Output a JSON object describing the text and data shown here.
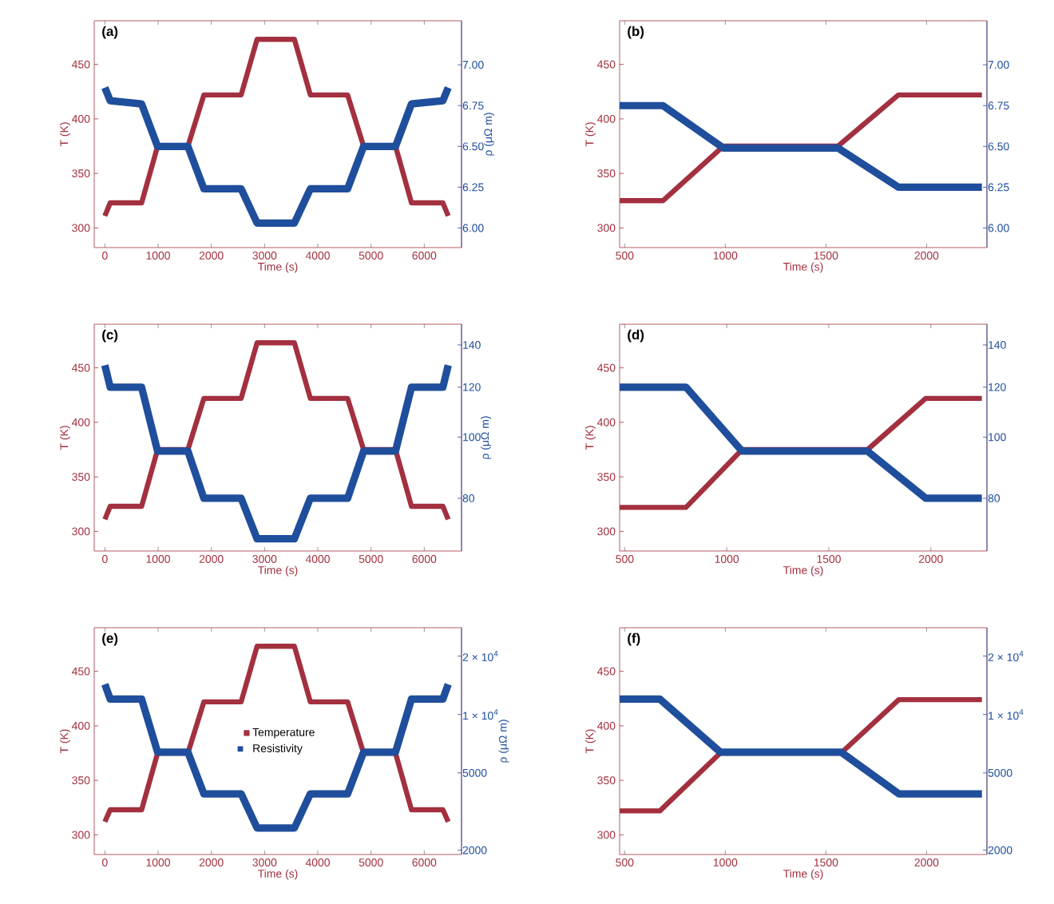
{
  "chart_data": [
    {
      "type": "line",
      "xlabel": "Time (s)",
      "ylabel": "T (K)",
      "y2label": "ρ (μΩ m)",
      "annotations": [
        "(a)"
      ],
      "legend": false,
      "xlim": [
        -200,
        6700
      ],
      "xticks": [
        0,
        1000,
        2000,
        3000,
        4000,
        5000,
        6000
      ],
      "ylim": [
        282,
        490
      ],
      "yticks": [
        300,
        350,
        400,
        450
      ],
      "y2lim": [
        5.88,
        7.27
      ],
      "y2ticks": [
        {
          "value": 6,
          "label": "6.00"
        },
        {
          "value": 6.25,
          "label": "6.25"
        },
        {
          "value": 6.5,
          "label": "6.50"
        },
        {
          "value": 6.75,
          "label": "6.75"
        },
        {
          "value": 7,
          "label": "7.00"
        }
      ],
      "series": [
        {
          "color": "#a3303f",
          "x": [
            0,
            100,
            690,
            990,
            1560,
            1860,
            2560,
            2860,
            3560,
            3860,
            4560,
            4860,
            5460,
            5760,
            6350,
            6450
          ],
          "values": [
            311,
            323,
            323,
            375,
            375,
            422,
            422,
            473,
            473,
            422,
            422,
            375,
            375,
            323,
            323,
            311
          ]
        },
        {
          "color": "#1f4e9c",
          "axis": "y2",
          "x": [
            0,
            100,
            690,
            990,
            1560,
            1860,
            2560,
            2860,
            3560,
            3860,
            4560,
            4860,
            5460,
            5760,
            6350,
            6450
          ],
          "values": [
            6.86,
            6.78,
            6.76,
            6.5,
            6.5,
            6.24,
            6.24,
            6.03,
            6.03,
            6.24,
            6.24,
            6.5,
            6.5,
            6.76,
            6.78,
            6.86
          ]
        }
      ]
    },
    {
      "type": "line",
      "xlabel": "Time (s)",
      "ylabel": "T (K)",
      "annotations": [
        "(b)"
      ],
      "legend": false,
      "xlim": [
        475,
        2300
      ],
      "xticks": [
        500,
        1000,
        1500,
        2000
      ],
      "ylim": [
        282,
        490
      ],
      "yticks": [
        300,
        350,
        400,
        450
      ],
      "y2lim": [
        5.88,
        7.27
      ],
      "y2ticks": [
        {
          "value": 6,
          "label": "6.00"
        },
        {
          "value": 6.25,
          "label": "6.25"
        },
        {
          "value": 6.5,
          "label": "6.50"
        },
        {
          "value": 6.75,
          "label": "6.75"
        },
        {
          "value": 7,
          "label": "7.00"
        }
      ],
      "series": [
        {
          "color": "#a3303f",
          "x": [
            475,
            690,
            990,
            1560,
            1860,
            2275
          ],
          "values": [
            325,
            325,
            375,
            375,
            422,
            422
          ]
        },
        {
          "color": "#1f4e9c",
          "axis": "y2",
          "x": [
            475,
            690,
            990,
            1560,
            1860,
            2275
          ],
          "values": [
            6.75,
            6.75,
            6.49,
            6.49,
            6.25,
            6.25
          ]
        }
      ]
    },
    {
      "type": "line",
      "xlabel": "Time (s)",
      "ylabel": "T (K)",
      "y2label": "ρ (μΩ m)",
      "annotations": [
        "(c)"
      ],
      "legend": false,
      "log": "y2",
      "xlim": [
        -200,
        6700
      ],
      "xticks": [
        0,
        1000,
        2000,
        3000,
        4000,
        5000,
        6000
      ],
      "ylim": [
        282,
        490
      ],
      "yticks": [
        300,
        350,
        400,
        450
      ],
      "y2lim": [
        66,
        151
      ],
      "y2ticks": [
        80,
        100,
        120,
        140
      ],
      "series": [
        {
          "color": "#a3303f",
          "x": [
            0,
            100,
            690,
            990,
            1560,
            1860,
            2560,
            2860,
            3560,
            3860,
            4560,
            4860,
            5460,
            5760,
            6350,
            6450
          ],
          "values": [
            311,
            323,
            323,
            375,
            375,
            422,
            422,
            473,
            473,
            422,
            422,
            375,
            375,
            323,
            323,
            311
          ]
        },
        {
          "color": "#1f4e9c",
          "axis": "y2",
          "x": [
            0,
            100,
            690,
            990,
            1560,
            1860,
            2560,
            2860,
            3560,
            3860,
            4560,
            4860,
            5460,
            5760,
            6350,
            6450
          ],
          "values": [
            130,
            120,
            120,
            95,
            95,
            80,
            80,
            69,
            69,
            80,
            80,
            95,
            95,
            120,
            120,
            130
          ]
        }
      ]
    },
    {
      "type": "line",
      "xlabel": "Time (s)",
      "ylabel": "T (K)",
      "annotations": [
        "(d)"
      ],
      "legend": false,
      "log": "y2",
      "xlim": [
        475,
        2275
      ],
      "xticks": [
        500,
        1000,
        1500,
        2000
      ],
      "ylim": [
        282,
        490
      ],
      "yticks": [
        300,
        350,
        400,
        450
      ],
      "y2lim": [
        66,
        151
      ],
      "y2ticks": [
        80,
        100,
        120,
        140
      ],
      "series": [
        {
          "color": "#a3303f",
          "x": [
            475,
            800,
            1075,
            1690,
            1975,
            2250
          ],
          "values": [
            322,
            322,
            375,
            375,
            422,
            422
          ]
        },
        {
          "color": "#1f4e9c",
          "axis": "y2",
          "x": [
            475,
            800,
            1075,
            1690,
            1975,
            2250
          ],
          "values": [
            120,
            120,
            95,
            95,
            80,
            80
          ]
        }
      ]
    },
    {
      "type": "line",
      "xlabel": "Time (s)",
      "ylabel": "T (K)",
      "y2label": "ρ (μΩ m)",
      "annotations": [
        "(e)"
      ],
      "legend": "center",
      "log": "y2",
      "xlim": [
        -200,
        6700
      ],
      "xticks": [
        0,
        1000,
        2000,
        3000,
        4000,
        5000,
        6000
      ],
      "ylim": [
        282,
        490
      ],
      "yticks": [
        300,
        350,
        400,
        450
      ],
      "y2lim": [
        1900,
        28000
      ],
      "y2ticks": [
        2000,
        5000,
        {
          "value": 10000,
          "label": "1 × 10$^{4}$"
        },
        {
          "value": 20000,
          "label": "2 × 10$^{4}$"
        }
      ],
      "series": [
        {
          "name": "Temperature",
          "color": "#a3303f",
          "x": [
            0,
            100,
            690,
            990,
            1560,
            1860,
            2560,
            2860,
            3560,
            3860,
            4560,
            4860,
            5460,
            5760,
            6350,
            6450
          ],
          "values": [
            312,
            323,
            323,
            375,
            375,
            422,
            422,
            473,
            473,
            422,
            422,
            375,
            375,
            323,
            323,
            312
          ]
        },
        {
          "name": "Resistivity",
          "color": "#1f4e9c",
          "axis": "y2",
          "x": [
            0,
            100,
            690,
            990,
            1560,
            1860,
            2560,
            2860,
            3560,
            3860,
            4560,
            4860,
            5460,
            5760,
            6350,
            6450
          ],
          "values": [
            14300,
            12000,
            12000,
            6400,
            6400,
            3900,
            3900,
            2600,
            2600,
            3900,
            3900,
            6400,
            6400,
            12000,
            12000,
            14300
          ]
        }
      ]
    },
    {
      "type": "line",
      "xlabel": "Time (s)",
      "ylabel": "T (K)",
      "annotations": [
        "(f)"
      ],
      "legend": false,
      "log": "y2",
      "xlim": [
        475,
        2300
      ],
      "xticks": [
        500,
        1000,
        1500,
        2000
      ],
      "ylim": [
        282,
        490
      ],
      "yticks": [
        300,
        350,
        400,
        450
      ],
      "y2lim": [
        1900,
        28000
      ],
      "y2ticks": [
        2000,
        5000,
        {
          "value": 10000,
          "label": "1 × 10$^{4}$"
        },
        {
          "value": 20000,
          "label": "2 × 10$^{4}$"
        }
      ],
      "series": [
        {
          "color": "#a3303f",
          "x": [
            475,
            675,
            975,
            1575,
            1862,
            2275
          ],
          "values": [
            322,
            322,
            375,
            375,
            424,
            424
          ]
        },
        {
          "color": "#1f4e9c",
          "axis": "y2",
          "x": [
            475,
            675,
            975,
            1575,
            1862,
            2275
          ],
          "values": [
            12000,
            12000,
            6400,
            6400,
            3900,
            3900
          ]
        }
      ]
    }
  ]
}
